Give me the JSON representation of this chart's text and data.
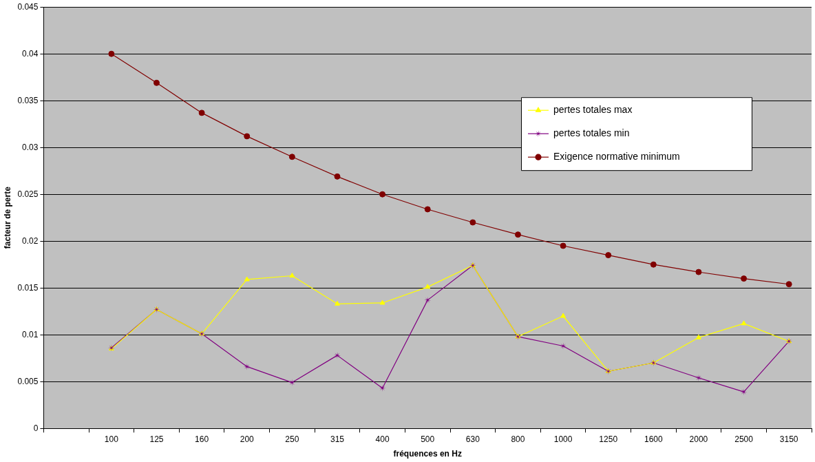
{
  "chart_data": {
    "type": "line",
    "xlabel": "fréquences en Hz",
    "ylabel": "facteur de perte",
    "categories": [
      null,
      "100",
      "125",
      "160",
      "200",
      "250",
      "315",
      "400",
      "500",
      "630",
      "800",
      "1000",
      "1250",
      "1600",
      "2000",
      "2500",
      "3150"
    ],
    "series": [
      {
        "name": "pertes totales max",
        "color": "#ffff00",
        "marker": "triangle",
        "values": [
          null,
          0.0085,
          0.0127,
          0.0101,
          0.0159,
          0.0163,
          0.0133,
          0.0134,
          0.0151,
          0.0174,
          0.0098,
          0.012,
          0.0061,
          0.007,
          0.0097,
          0.0112,
          0.0093
        ]
      },
      {
        "name": "pertes totales min",
        "color": "#800080",
        "marker": "star",
        "values": [
          null,
          0.0086,
          0.0127,
          0.0101,
          0.0066,
          0.0049,
          0.0078,
          0.0043,
          0.0137,
          0.0174,
          0.0098,
          0.0088,
          0.0061,
          0.007,
          0.0054,
          0.0039,
          0.0093
        ]
      },
      {
        "name": "Exigence normative minimum",
        "color": "#800000",
        "marker": "circle",
        "values": [
          null,
          0.04,
          0.0369,
          0.0337,
          0.0312,
          0.029,
          0.0269,
          0.025,
          0.0234,
          0.022,
          0.0207,
          0.0195,
          0.0185,
          0.0175,
          0.0167,
          0.016,
          0.0154
        ]
      }
    ],
    "ylim": [
      0,
      0.045
    ],
    "yticks": [
      0,
      0.005,
      0.01,
      0.015,
      0.02,
      0.025,
      0.03,
      0.035,
      0.04,
      0.045
    ],
    "grid": "y",
    "legend": "right"
  }
}
